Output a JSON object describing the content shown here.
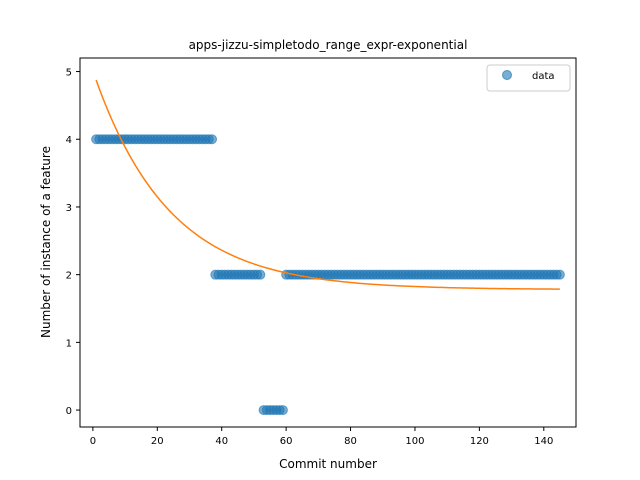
{
  "chart_data": {
    "type": "scatter",
    "title": "apps-jizzu-simpletodo_range_expr-exponential",
    "xlabel": "Commit number",
    "ylabel": "Number of instance of a feature",
    "xlim": [
      -4,
      150
    ],
    "ylim": [
      -0.25,
      5.2
    ],
    "xticks": [
      0,
      20,
      40,
      60,
      80,
      100,
      120,
      140
    ],
    "yticks": [
      0,
      1,
      2,
      3,
      4,
      5
    ],
    "legend": {
      "position": "top-right",
      "entries": [
        "data"
      ]
    },
    "colors": {
      "data": "#1f77b4",
      "fit": "#ff7f0e"
    },
    "series": [
      {
        "name": "data",
        "kind": "scatter",
        "segments": [
          {
            "x_start": 1,
            "x_end": 37,
            "y": 4
          },
          {
            "x_start": 38,
            "x_end": 52,
            "y": 2
          },
          {
            "x_start": 53,
            "x_end": 59,
            "y": 0
          },
          {
            "x_start": 60,
            "x_end": 145,
            "y": 2
          }
        ]
      },
      {
        "name": "fit",
        "kind": "line",
        "model": "exponential",
        "a": 3.23,
        "b": 0.0429,
        "c": 1.78,
        "x_start": 1,
        "x_end": 145
      }
    ]
  }
}
